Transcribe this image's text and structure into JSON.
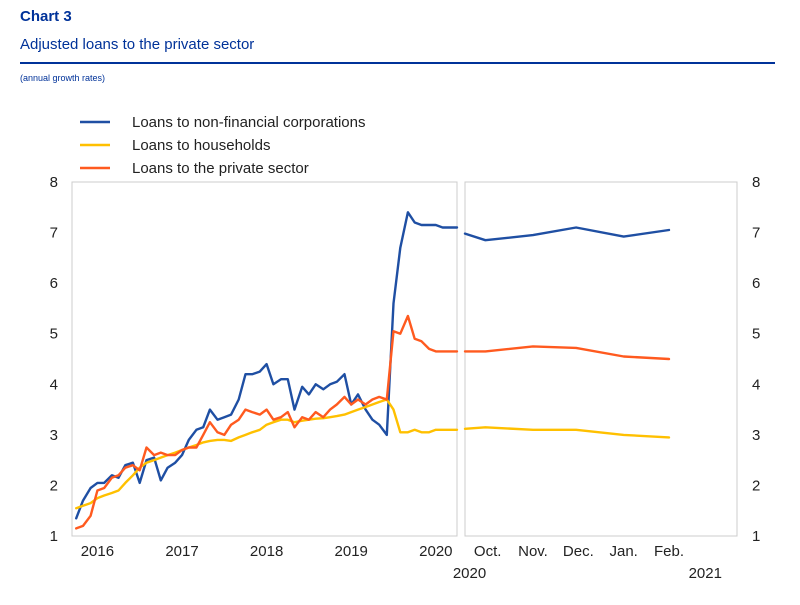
{
  "header": {
    "label": "Chart 3",
    "title": "Adjusted loans to the private sector",
    "subtitle": "(annual growth rates)"
  },
  "chart_data": {
    "type": "line",
    "ylim": [
      1,
      8
    ],
    "yticks": [
      1,
      2,
      3,
      4,
      5,
      6,
      7,
      8
    ],
    "grid": false,
    "legend_position": "top-left",
    "series_colors": {
      "nfc": "#1f4fa3",
      "hh": "#ffc000",
      "ps": "#ff5a1f"
    },
    "legend": [
      {
        "key": "nfc",
        "label": "Loans to non-financial corporations"
      },
      {
        "key": "hh",
        "label": "Loans to households"
      },
      {
        "key": "ps",
        "label": "Loans to the private sector"
      }
    ],
    "panels": [
      {
        "name": "monthly",
        "x_unit": "year",
        "xlim": [
          2015.7,
          2020.25
        ],
        "x_tick_labels": [
          {
            "x": 2016,
            "label": "2016"
          },
          {
            "x": 2017,
            "label": "2017"
          },
          {
            "x": 2018,
            "label": "2018"
          },
          {
            "x": 2019,
            "label": "2019"
          },
          {
            "x": 2020,
            "label": "2020"
          }
        ],
        "series": [
          {
            "key": "nfc",
            "x": [
              2015.75,
              2015.83,
              2015.92,
              2016.0,
              2016.08,
              2016.17,
              2016.25,
              2016.33,
              2016.42,
              2016.5,
              2016.58,
              2016.67,
              2016.75,
              2016.83,
              2016.92,
              2017.0,
              2017.08,
              2017.17,
              2017.25,
              2017.33,
              2017.42,
              2017.5,
              2017.58,
              2017.67,
              2017.75,
              2017.83,
              2017.92,
              2018.0,
              2018.08,
              2018.17,
              2018.25,
              2018.33,
              2018.42,
              2018.5,
              2018.58,
              2018.67,
              2018.75,
              2018.83,
              2018.92,
              2019.0,
              2019.08,
              2019.17,
              2019.25,
              2019.33,
              2019.42,
              2019.5,
              2019.58,
              2019.67,
              2019.75,
              2019.83,
              2019.92,
              2020.0,
              2020.08,
              2020.17,
              2020.25
            ],
            "y": [
              1.35,
              1.7,
              1.95,
              2.05,
              2.05,
              2.2,
              2.15,
              2.4,
              2.45,
              2.05,
              2.5,
              2.55,
              2.1,
              2.35,
              2.45,
              2.6,
              2.9,
              3.1,
              3.15,
              3.5,
              3.3,
              3.35,
              3.4,
              3.7,
              4.2,
              4.2,
              4.25,
              4.4,
              4.0,
              4.1,
              4.1,
              3.5,
              3.95,
              3.8,
              4.0,
              3.9,
              4.0,
              4.05,
              4.2,
              3.6,
              3.8,
              3.5,
              3.3,
              3.2,
              3.0,
              5.6,
              6.7,
              7.4,
              7.2,
              7.15,
              7.15,
              7.15,
              7.1,
              7.1,
              7.1
            ]
          },
          {
            "key": "hh",
            "x": [
              2015.75,
              2015.83,
              2015.92,
              2016.0,
              2016.08,
              2016.17,
              2016.25,
              2016.33,
              2016.42,
              2016.5,
              2016.58,
              2016.67,
              2016.75,
              2016.83,
              2016.92,
              2017.0,
              2017.08,
              2017.17,
              2017.25,
              2017.33,
              2017.42,
              2017.5,
              2017.58,
              2017.67,
              2017.75,
              2017.83,
              2017.92,
              2018.0,
              2018.08,
              2018.17,
              2018.25,
              2018.33,
              2018.42,
              2018.5,
              2018.58,
              2018.67,
              2018.75,
              2018.83,
              2018.92,
              2019.0,
              2019.08,
              2019.17,
              2019.25,
              2019.33,
              2019.42,
              2019.5,
              2019.58,
              2019.67,
              2019.75,
              2019.83,
              2019.92,
              2020.0,
              2020.08,
              2020.17,
              2020.25
            ],
            "y": [
              1.55,
              1.6,
              1.65,
              1.75,
              1.8,
              1.85,
              1.9,
              2.05,
              2.2,
              2.35,
              2.45,
              2.5,
              2.55,
              2.6,
              2.65,
              2.7,
              2.75,
              2.8,
              2.85,
              2.88,
              2.9,
              2.9,
              2.88,
              2.95,
              3.0,
              3.05,
              3.1,
              3.2,
              3.25,
              3.3,
              3.3,
              3.25,
              3.28,
              3.3,
              3.32,
              3.33,
              3.35,
              3.37,
              3.4,
              3.45,
              3.5,
              3.55,
              3.6,
              3.65,
              3.7,
              3.5,
              3.05,
              3.05,
              3.1,
              3.05,
              3.05,
              3.1,
              3.1,
              3.1,
              3.1
            ]
          },
          {
            "key": "ps",
            "x": [
              2015.75,
              2015.83,
              2015.92,
              2016.0,
              2016.08,
              2016.17,
              2016.25,
              2016.33,
              2016.42,
              2016.5,
              2016.58,
              2016.67,
              2016.75,
              2016.83,
              2016.92,
              2017.0,
              2017.08,
              2017.17,
              2017.25,
              2017.33,
              2017.42,
              2017.5,
              2017.58,
              2017.67,
              2017.75,
              2017.83,
              2017.92,
              2018.0,
              2018.08,
              2018.17,
              2018.25,
              2018.33,
              2018.42,
              2018.5,
              2018.58,
              2018.67,
              2018.75,
              2018.83,
              2018.92,
              2019.0,
              2019.08,
              2019.17,
              2019.25,
              2019.33,
              2019.42,
              2019.5,
              2019.58,
              2019.67,
              2019.75,
              2019.83,
              2019.92,
              2020.0,
              2020.08,
              2020.17,
              2020.25
            ],
            "y": [
              1.15,
              1.2,
              1.4,
              1.9,
              1.95,
              2.15,
              2.2,
              2.35,
              2.4,
              2.3,
              2.75,
              2.6,
              2.65,
              2.6,
              2.6,
              2.7,
              2.75,
              2.75,
              3.0,
              3.25,
              3.05,
              3.0,
              3.2,
              3.3,
              3.5,
              3.45,
              3.4,
              3.5,
              3.3,
              3.35,
              3.45,
              3.15,
              3.35,
              3.3,
              3.45,
              3.35,
              3.5,
              3.6,
              3.75,
              3.6,
              3.7,
              3.6,
              3.7,
              3.75,
              3.7,
              5.05,
              5.0,
              5.35,
              4.9,
              4.85,
              4.7,
              4.65,
              4.65,
              4.65,
              4.65
            ]
          }
        ]
      },
      {
        "name": "recent",
        "x_unit": "month",
        "xlim": [
          0,
          6
        ],
        "x_tick_labels": [
          {
            "x": 0.5,
            "label": "Oct."
          },
          {
            "x": 1.5,
            "label": "Nov."
          },
          {
            "x": 2.5,
            "label": "Dec."
          },
          {
            "x": 3.5,
            "label": "Jan."
          },
          {
            "x": 4.5,
            "label": "Feb."
          }
        ],
        "year_labels": [
          {
            "x": 0.1,
            "label": "2020"
          },
          {
            "x": 5.3,
            "label": "2021"
          }
        ],
        "series": [
          {
            "key": "nfc",
            "x": [
              0.0,
              0.45,
              1.5,
              2.45,
              3.5,
              4.5
            ],
            "y": [
              6.98,
              6.85,
              6.95,
              7.1,
              6.92,
              7.05
            ]
          },
          {
            "key": "hh",
            "x": [
              0.0,
              0.45,
              1.5,
              2.45,
              3.5,
              4.5
            ],
            "y": [
              3.12,
              3.15,
              3.1,
              3.1,
              3.0,
              2.95
            ]
          },
          {
            "key": "ps",
            "x": [
              0.0,
              0.45,
              1.5,
              2.45,
              3.5,
              4.5
            ],
            "y": [
              4.65,
              4.65,
              4.75,
              4.72,
              4.55,
              4.5
            ]
          }
        ]
      }
    ]
  }
}
